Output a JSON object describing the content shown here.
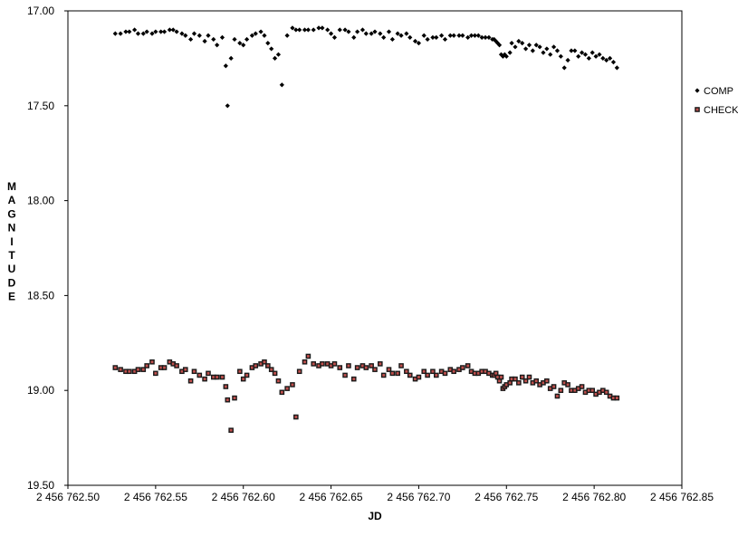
{
  "chart_data": {
    "type": "scatter",
    "title": "",
    "xlabel": "JD",
    "ylabel": "MAGNITUDE",
    "xlim": [
      2456762.5,
      2456762.85
    ],
    "ylim": [
      17.0,
      19.5
    ],
    "y_inverted": true,
    "grid": false,
    "legend_position": "right",
    "x_ticks": [
      2456762.5,
      2456762.55,
      2456762.6,
      2456762.65,
      2456762.7,
      2456762.75,
      2456762.8,
      2456762.85
    ],
    "x_tick_labels": [
      "2 456 762.50",
      "2 456 762.55",
      "2 456 762.60",
      "2 456 762.65",
      "2 456 762.70",
      "2 456 762.75",
      "2 456 762.80",
      "2 456 762.85"
    ],
    "y_ticks": [
      17.0,
      17.5,
      18.0,
      18.5,
      19.0,
      19.5
    ],
    "y_tick_labels": [
      "17.00",
      "17.50",
      "18.00",
      "18.50",
      "19.00",
      "19.50"
    ],
    "series": [
      {
        "name": "COMP",
        "marker": "diamond",
        "color": "#000000",
        "x": [
          2456762.527,
          2456762.53,
          2456762.533,
          2456762.535,
          2456762.538,
          2456762.54,
          2456762.543,
          2456762.545,
          2456762.548,
          2456762.55,
          2456762.553,
          2456762.555,
          2456762.558,
          2456762.56,
          2456762.562,
          2456762.565,
          2456762.567,
          2456762.57,
          2456762.572,
          2456762.575,
          2456762.578,
          2456762.58,
          2456762.583,
          2456762.585,
          2456762.588,
          2456762.59,
          2456762.591,
          2456762.593,
          2456762.595,
          2456762.598,
          2456762.6,
          2456762.602,
          2456762.605,
          2456762.607,
          2456762.61,
          2456762.612,
          2456762.614,
          2456762.616,
          2456762.618,
          2456762.62,
          2456762.622,
          2456762.625,
          2456762.628,
          2456762.63,
          2456762.632,
          2456762.635,
          2456762.637,
          2456762.64,
          2456762.643,
          2456762.645,
          2456762.648,
          2456762.65,
          2456762.652,
          2456762.655,
          2456762.658,
          2456762.66,
          2456762.663,
          2456762.665,
          2456762.668,
          2456762.67,
          2456762.673,
          2456762.675,
          2456762.678,
          2456762.68,
          2456762.683,
          2456762.685,
          2456762.688,
          2456762.69,
          2456762.693,
          2456762.695,
          2456762.698,
          2456762.7,
          2456762.703,
          2456762.705,
          2456762.708,
          2456762.71,
          2456762.713,
          2456762.715,
          2456762.718,
          2456762.72,
          2456762.723,
          2456762.725,
          2456762.728,
          2456762.73,
          2456762.732,
          2456762.734,
          2456762.736,
          2456762.738,
          2456762.74,
          2456762.742,
          2456762.743,
          2456762.744,
          2456762.745,
          2456762.746,
          2456762.747,
          2456762.748,
          2456762.749,
          2456762.75,
          2456762.752,
          2456762.753,
          2456762.755,
          2456762.757,
          2456762.759,
          2456762.761,
          2456762.763,
          2456762.765,
          2456762.767,
          2456762.769,
          2456762.771,
          2456762.773,
          2456762.775,
          2456762.777,
          2456762.779,
          2456762.781,
          2456762.783,
          2456762.785,
          2456762.787,
          2456762.789,
          2456762.791,
          2456762.793,
          2456762.795,
          2456762.797,
          2456762.799,
          2456762.801,
          2456762.803,
          2456762.805,
          2456762.807,
          2456762.809,
          2456762.811,
          2456762.813
        ],
        "y": [
          17.12,
          17.12,
          17.11,
          17.11,
          17.1,
          17.12,
          17.12,
          17.11,
          17.12,
          17.11,
          17.11,
          17.11,
          17.1,
          17.1,
          17.11,
          17.12,
          17.13,
          17.15,
          17.12,
          17.13,
          17.16,
          17.13,
          17.15,
          17.18,
          17.14,
          17.29,
          17.5,
          17.25,
          17.15,
          17.17,
          17.18,
          17.15,
          17.13,
          17.12,
          17.11,
          17.13,
          17.17,
          17.2,
          17.25,
          17.23,
          17.39,
          17.13,
          17.09,
          17.1,
          17.1,
          17.1,
          17.1,
          17.1,
          17.09,
          17.09,
          17.1,
          17.12,
          17.14,
          17.1,
          17.1,
          17.11,
          17.14,
          17.11,
          17.1,
          17.12,
          17.12,
          17.11,
          17.12,
          17.14,
          17.11,
          17.15,
          17.12,
          17.13,
          17.12,
          17.14,
          17.16,
          17.17,
          17.13,
          17.15,
          17.14,
          17.14,
          17.13,
          17.15,
          17.13,
          17.13,
          17.13,
          17.13,
          17.14,
          17.13,
          17.13,
          17.13,
          17.14,
          17.14,
          17.14,
          17.15,
          17.15,
          17.16,
          17.17,
          17.18,
          17.23,
          17.24,
          17.23,
          17.24,
          17.22,
          17.17,
          17.19,
          17.16,
          17.17,
          17.2,
          17.18,
          17.21,
          17.18,
          17.19,
          17.22,
          17.2,
          17.23,
          17.19,
          17.21,
          17.24,
          17.3,
          17.26,
          17.21,
          17.21,
          17.24,
          17.22,
          17.23,
          17.25,
          17.22,
          17.24,
          17.23,
          17.25,
          17.26,
          17.25,
          17.27,
          17.3
        ]
      },
      {
        "name": "CHECK",
        "marker": "square",
        "color": "#c0504d",
        "x": [
          2456762.527,
          2456762.53,
          2456762.533,
          2456762.535,
          2456762.538,
          2456762.54,
          2456762.543,
          2456762.545,
          2456762.548,
          2456762.55,
          2456762.553,
          2456762.555,
          2456762.558,
          2456762.56,
          2456762.562,
          2456762.565,
          2456762.567,
          2456762.57,
          2456762.572,
          2456762.575,
          2456762.578,
          2456762.58,
          2456762.583,
          2456762.585,
          2456762.588,
          2456762.59,
          2456762.591,
          2456762.593,
          2456762.595,
          2456762.598,
          2456762.6,
          2456762.602,
          2456762.605,
          2456762.607,
          2456762.61,
          2456762.612,
          2456762.614,
          2456762.616,
          2456762.618,
          2456762.62,
          2456762.622,
          2456762.625,
          2456762.628,
          2456762.63,
          2456762.632,
          2456762.635,
          2456762.637,
          2456762.64,
          2456762.643,
          2456762.645,
          2456762.648,
          2456762.65,
          2456762.652,
          2456762.655,
          2456762.658,
          2456762.66,
          2456762.663,
          2456762.665,
          2456762.668,
          2456762.67,
          2456762.673,
          2456762.675,
          2456762.678,
          2456762.68,
          2456762.683,
          2456762.685,
          2456762.688,
          2456762.69,
          2456762.693,
          2456762.695,
          2456762.698,
          2456762.7,
          2456762.703,
          2456762.705,
          2456762.708,
          2456762.71,
          2456762.713,
          2456762.715,
          2456762.718,
          2456762.72,
          2456762.723,
          2456762.725,
          2456762.728,
          2456762.73,
          2456762.732,
          2456762.734,
          2456762.736,
          2456762.738,
          2456762.74,
          2456762.742,
          2456762.743,
          2456762.744,
          2456762.745,
          2456762.746,
          2456762.747,
          2456762.748,
          2456762.749,
          2456762.75,
          2456762.752,
          2456762.753,
          2456762.755,
          2456762.757,
          2456762.759,
          2456762.761,
          2456762.763,
          2456762.765,
          2456762.767,
          2456762.769,
          2456762.771,
          2456762.773,
          2456762.775,
          2456762.777,
          2456762.779,
          2456762.781,
          2456762.783,
          2456762.785,
          2456762.787,
          2456762.789,
          2456762.791,
          2456762.793,
          2456762.795,
          2456762.797,
          2456762.799,
          2456762.801,
          2456762.803,
          2456762.805,
          2456762.807,
          2456762.809,
          2456762.811,
          2456762.813
        ],
        "y": [
          18.88,
          18.89,
          18.9,
          18.9,
          18.9,
          18.89,
          18.89,
          18.87,
          18.85,
          18.91,
          18.88,
          18.88,
          18.85,
          18.86,
          18.87,
          18.9,
          18.89,
          18.95,
          18.9,
          18.92,
          18.94,
          18.91,
          18.93,
          18.93,
          18.93,
          18.98,
          19.05,
          19.21,
          19.04,
          18.9,
          18.94,
          18.92,
          18.88,
          18.87,
          18.86,
          18.85,
          18.87,
          18.89,
          18.91,
          18.95,
          19.01,
          18.99,
          18.97,
          19.14,
          18.9,
          18.85,
          18.82,
          18.86,
          18.87,
          18.86,
          18.86,
          18.87,
          18.86,
          18.88,
          18.92,
          18.87,
          18.94,
          18.88,
          18.87,
          18.88,
          18.87,
          18.89,
          18.86,
          18.92,
          18.89,
          18.91,
          18.91,
          18.87,
          18.9,
          18.92,
          18.94,
          18.93,
          18.9,
          18.92,
          18.9,
          18.92,
          18.9,
          18.91,
          18.89,
          18.9,
          18.89,
          18.88,
          18.87,
          18.9,
          18.91,
          18.91,
          18.9,
          18.9,
          18.91,
          18.92,
          18.92,
          18.91,
          18.93,
          18.95,
          18.93,
          18.99,
          18.98,
          18.97,
          18.96,
          18.94,
          18.94,
          18.96,
          18.93,
          18.95,
          18.93,
          18.96,
          18.95,
          18.97,
          18.96,
          18.95,
          18.99,
          18.98,
          19.03,
          19.0,
          18.96,
          18.97,
          19.0,
          19.0,
          18.99,
          18.98,
          19.01,
          19.0,
          19.0,
          19.02,
          19.01,
          19.0,
          19.01,
          19.03,
          19.04,
          19.04
        ]
      }
    ]
  }
}
